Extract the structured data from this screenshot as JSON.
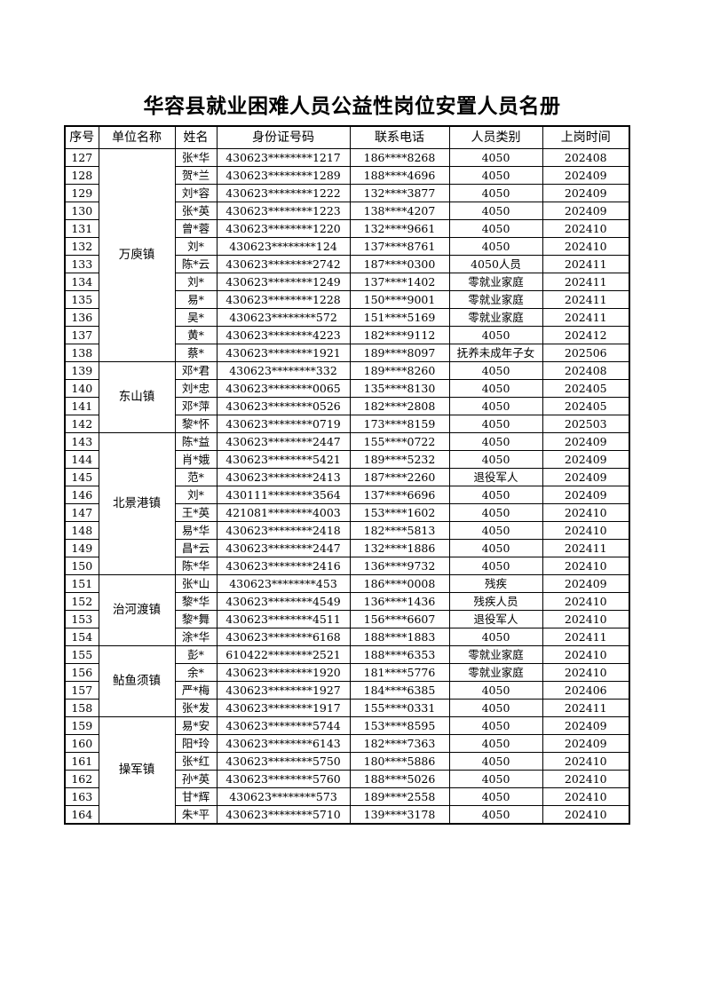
{
  "title": "华容县就业困难人员公益性岗位安置人员名册",
  "headers": [
    "序号",
    "单位名称",
    "姓名",
    "身份证号码",
    "联系电话",
    "人员类别",
    "上岗时间"
  ],
  "groups": [
    {
      "unit": "万庾镇",
      "rows": [
        [
          "127",
          "张*华",
          "430623********1217",
          "186****8268",
          "4050",
          "202408"
        ],
        [
          "128",
          "贺*兰",
          "430623********1289",
          "188****4696",
          "4050",
          "202409"
        ],
        [
          "129",
          "刘*容",
          "430623********1222",
          "132****3877",
          "4050",
          "202409"
        ],
        [
          "130",
          "张*英",
          "430623********1223",
          "138****4207",
          "4050",
          "202409"
        ],
        [
          "131",
          "曾*蓉",
          "430623********1220",
          "132****9661",
          "4050",
          "202410"
        ],
        [
          "132",
          "刘*",
          "430623********124",
          "137****8761",
          "4050",
          "202410"
        ],
        [
          "133",
          "陈*云",
          "430623********2742",
          "187****0300",
          "4050人员",
          "202411"
        ],
        [
          "134",
          "刘*",
          "430623********1249",
          "137****1402",
          "零就业家庭",
          "202411"
        ],
        [
          "135",
          "易*",
          "430623********1228",
          "150****9001",
          "零就业家庭",
          "202411"
        ],
        [
          "136",
          "吴*",
          "430623********572",
          "151****5169",
          "零就业家庭",
          "202411"
        ],
        [
          "137",
          "黄*",
          "430623********4223",
          "182****9112",
          "4050",
          "202412"
        ],
        [
          "138",
          "蔡*",
          "430623********1921",
          "189****8097",
          "抚养未成年子女",
          "202506"
        ]
      ]
    },
    {
      "unit": "东山镇",
      "rows": [
        [
          "139",
          "邓*君",
          "430623********332",
          "189****8260",
          "4050",
          "202408"
        ],
        [
          "140",
          "刘*忠",
          "430623********0065",
          "135****8130",
          "4050",
          "202405"
        ],
        [
          "141",
          "邓*萍",
          "430623********0526",
          "182****2808",
          "4050",
          "202405"
        ],
        [
          "142",
          "黎*怀",
          "430623********0719",
          "173****8159",
          "4050",
          "202503"
        ]
      ]
    },
    {
      "unit": "北景港镇",
      "rows": [
        [
          "143",
          "陈*益",
          "430623********2447",
          "155****0722",
          "4050",
          "202409"
        ],
        [
          "144",
          "肖*娥",
          "430623********5421",
          "189****5232",
          "4050",
          "202409"
        ],
        [
          "145",
          "范*",
          "430623********2413",
          "187****2260",
          "退役军人",
          "202409"
        ],
        [
          "146",
          "刘*",
          "430111********3564",
          "137****6696",
          "4050",
          "202409"
        ],
        [
          "147",
          "王*英",
          "421081********4003",
          "153****1602",
          "4050",
          "202410"
        ],
        [
          "148",
          "易*华",
          "430623********2418",
          "182****5813",
          "4050",
          "202410"
        ],
        [
          "149",
          "昌*云",
          "430623********2447",
          "132****1886",
          "4050",
          "202411"
        ],
        [
          "150",
          "陈*华",
          "430623********2416",
          "136****9732",
          "4050",
          "202410"
        ]
      ]
    },
    {
      "unit": "治河渡镇",
      "rows": [
        [
          "151",
          "张*山",
          "430623********453",
          "186****0008",
          "残疾",
          "202409"
        ],
        [
          "152",
          "黎*华",
          "430623********4549",
          "136****1436",
          "残疾人员",
          "202410"
        ],
        [
          "153",
          "黎*舞",
          "430623********4511",
          "156****6607",
          "退役军人",
          "202410"
        ],
        [
          "154",
          "涂*华",
          "430623********6168",
          "188****1883",
          "4050",
          "202411"
        ]
      ]
    },
    {
      "unit": "鲇鱼须镇",
      "rows": [
        [
          "155",
          "彭*",
          "610422********2521",
          "188****6353",
          "零就业家庭",
          "202410"
        ],
        [
          "156",
          "余*",
          "430623********1920",
          "181****5776",
          "零就业家庭",
          "202410"
        ],
        [
          "157",
          "严*梅",
          "430623********1927",
          "184****6385",
          "4050",
          "202406"
        ],
        [
          "158",
          "张*发",
          "430623********1917",
          "155****0331",
          "4050",
          "202411"
        ]
      ]
    },
    {
      "unit": "操军镇",
      "rows": [
        [
          "159",
          "易*安",
          "430623********5744",
          "153****8595",
          "4050",
          "202409"
        ],
        [
          "160",
          "阳*玲",
          "430623********6143",
          "182****7363",
          "4050",
          "202409"
        ],
        [
          "161",
          "张*红",
          "430623********5750",
          "180****5886",
          "4050",
          "202410"
        ],
        [
          "162",
          "孙*英",
          "430623********5760",
          "188****5026",
          "4050",
          "202410"
        ],
        [
          "163",
          "甘*辉",
          "430623********573",
          "189****2558",
          "4050",
          "202410"
        ],
        [
          "164",
          "朱*平",
          "430623********5710",
          "139****3178",
          "4050",
          "202410"
        ]
      ]
    }
  ]
}
